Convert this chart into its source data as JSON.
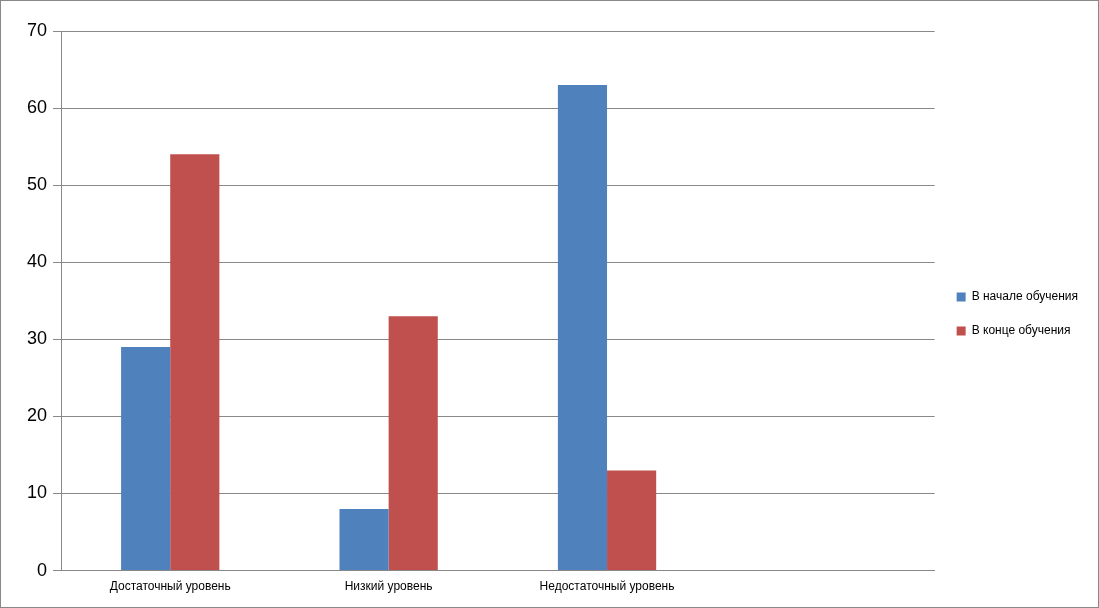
{
  "chart_data": {
    "type": "bar",
    "categories": [
      "Достаточный уровень",
      "Низкий уровень",
      "Недостаточный уровень",
      null
    ],
    "series": [
      {
        "name": "В начале обучения",
        "color": "#4f81bd",
        "values": [
          29,
          8,
          63,
          null
        ]
      },
      {
        "name": "В конце обучения",
        "color": "#c0504d",
        "values": [
          54,
          33,
          13,
          null
        ]
      }
    ],
    "ylim": [
      0,
      70
    ],
    "yticks": [
      0,
      10,
      20,
      30,
      40,
      50,
      60,
      70
    ],
    "grid": "y",
    "legend": "right"
  }
}
